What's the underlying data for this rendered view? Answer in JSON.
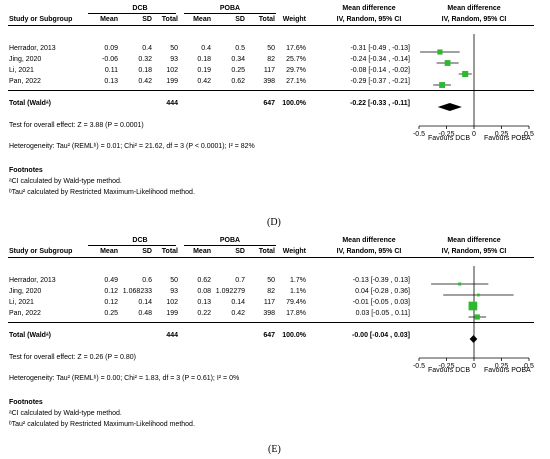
{
  "panels": [
    {
      "label": "(D)",
      "headers": {
        "col_study": "Study or Subgroup",
        "group1": "DCB",
        "group2": "POBA",
        "mean": "Mean",
        "sd": "SD",
        "total": "Total",
        "weight": "Weight",
        "md_title": "Mean difference",
        "md_method": "IV, Random, 95% CI"
      },
      "rows": [
        {
          "study": "Herrador, 2013",
          "m1": "0.09",
          "sd1": "0.4",
          "n1": "50",
          "m2": "0.4",
          "sd2": "0.5",
          "n2": "50",
          "weight": "17.6%",
          "ci": "-0.31 [-0.49 , -0.13]"
        },
        {
          "study": "Jing, 2020",
          "m1": "-0.06",
          "sd1": "0.32",
          "n1": "93",
          "m2": "0.18",
          "sd2": "0.34",
          "n2": "82",
          "weight": "25.7%",
          "ci": "-0.24 [-0.34 , -0.14]"
        },
        {
          "study": "Li, 2021",
          "m1": "0.11",
          "sd1": "0.18",
          "n1": "102",
          "m2": "0.19",
          "sd2": "0.25",
          "n2": "117",
          "weight": "29.7%",
          "ci": "-0.08 [-0.14 , -0.02]"
        },
        {
          "study": "Pan, 2022",
          "m1": "0.13",
          "sd1": "0.42",
          "n1": "199",
          "m2": "0.42",
          "sd2": "0.62",
          "n2": "398",
          "weight": "27.1%",
          "ci": "-0.29 [-0.37 , -0.21]"
        }
      ],
      "total": {
        "label": "Total (Waldᵃ)",
        "n1": "444",
        "n2": "647",
        "weight": "100.0%",
        "ci": "-0.22 [-0.33 , -0.11]"
      },
      "test": "Test for overall effect: Z = 3.88 (P = 0.0001)",
      "heterogeneity": "Heterogeneity: Tau² (REMLᵇ) = 0.01; Chi² = 21.62, df = 3 (P < 0.0001); I² = 82%",
      "footnotes_title": "Footnotes",
      "footnotes": [
        "ᵃCI calculated by Wald-type method.",
        "ᵇTau² calculated by Restricted Maximum-Likelihood method."
      ],
      "favours_left": "Favours DCB",
      "favours_right": "Favours POBA",
      "ticks": [
        "-0.5",
        "-0.25",
        "0",
        "0.25",
        "0.5"
      ]
    },
    {
      "label": "(E)",
      "headers": {
        "col_study": "Study or Subgroup",
        "group1": "DCB",
        "group2": "POBA",
        "mean": "Mean",
        "sd": "SD",
        "total": "Total",
        "weight": "Weight",
        "md_title": "Mean difference",
        "md_method": "IV, Random, 95% CI"
      },
      "rows": [
        {
          "study": "Herrador, 2013",
          "m1": "0.49",
          "sd1": "0.6",
          "n1": "50",
          "m2": "0.62",
          "sd2": "0.7",
          "n2": "50",
          "weight": "1.7%",
          "ci": "-0.13 [-0.39 , 0.13]"
        },
        {
          "study": "Jing, 2020",
          "m1": "0.12",
          "sd1": "1.068233",
          "n1": "93",
          "m2": "0.08",
          "sd2": "1.092279",
          "n2": "82",
          "weight": "1.1%",
          "ci": "0.04 [-0.28 , 0.36]"
        },
        {
          "study": "Li, 2021",
          "m1": "0.12",
          "sd1": "0.14",
          "n1": "102",
          "m2": "0.13",
          "sd2": "0.14",
          "n2": "117",
          "weight": "79.4%",
          "ci": "-0.01 [-0.05 , 0.03]"
        },
        {
          "study": "Pan, 2022",
          "m1": "0.25",
          "sd1": "0.48",
          "n1": "199",
          "m2": "0.22",
          "sd2": "0.42",
          "n2": "398",
          "weight": "17.8%",
          "ci": "0.03 [-0.05 , 0.11]"
        }
      ],
      "total": {
        "label": "Total (Waldᵃ)",
        "n1": "444",
        "n2": "647",
        "weight": "100.0%",
        "ci": "-0.00 [-0.04 , 0.03]"
      },
      "test": "Test for overall effect: Z = 0.26 (P = 0.80)",
      "heterogeneity": "Heterogeneity: Tau² (REMLᵇ) = 0.00; Chi² = 1.83, df = 3 (P = 0.61); I² = 0%",
      "footnotes_title": "Footnotes",
      "footnotes": [
        "ᵃCI calculated by Wald-type method.",
        "ᵇTau² calculated by Restricted Maximum-Likelihood method."
      ],
      "favours_left": "Favours DCB",
      "favours_right": "Favours POBA",
      "ticks": [
        "-0.5",
        "-0.25",
        "0",
        "0.25",
        "0.5"
      ]
    }
  ],
  "chart_data": [
    {
      "type": "scatter",
      "xlim": [
        -0.5,
        0.5
      ],
      "marker_color": "#2db82d",
      "points": [
        {
          "est": -0.31,
          "lo": -0.49,
          "hi": -0.13,
          "weight": 17.6
        },
        {
          "est": -0.24,
          "lo": -0.34,
          "hi": -0.14,
          "weight": 25.7
        },
        {
          "est": -0.08,
          "lo": -0.14,
          "hi": -0.02,
          "weight": 29.7
        },
        {
          "est": -0.29,
          "lo": -0.37,
          "hi": -0.21,
          "weight": 27.1
        }
      ],
      "pooled": {
        "est": -0.22,
        "lo": -0.33,
        "hi": -0.11
      }
    },
    {
      "type": "scatter",
      "xlim": [
        -0.5,
        0.5
      ],
      "marker_color": "#2db82d",
      "points": [
        {
          "est": -0.13,
          "lo": -0.39,
          "hi": 0.13,
          "weight": 1.7
        },
        {
          "est": 0.04,
          "lo": -0.28,
          "hi": 0.36,
          "weight": 1.1
        },
        {
          "est": -0.01,
          "lo": -0.05,
          "hi": 0.03,
          "weight": 79.4
        },
        {
          "est": 0.03,
          "lo": -0.05,
          "hi": 0.11,
          "weight": 17.8
        }
      ],
      "pooled": {
        "est": -0.004,
        "lo": -0.04,
        "hi": 0.03
      }
    }
  ]
}
